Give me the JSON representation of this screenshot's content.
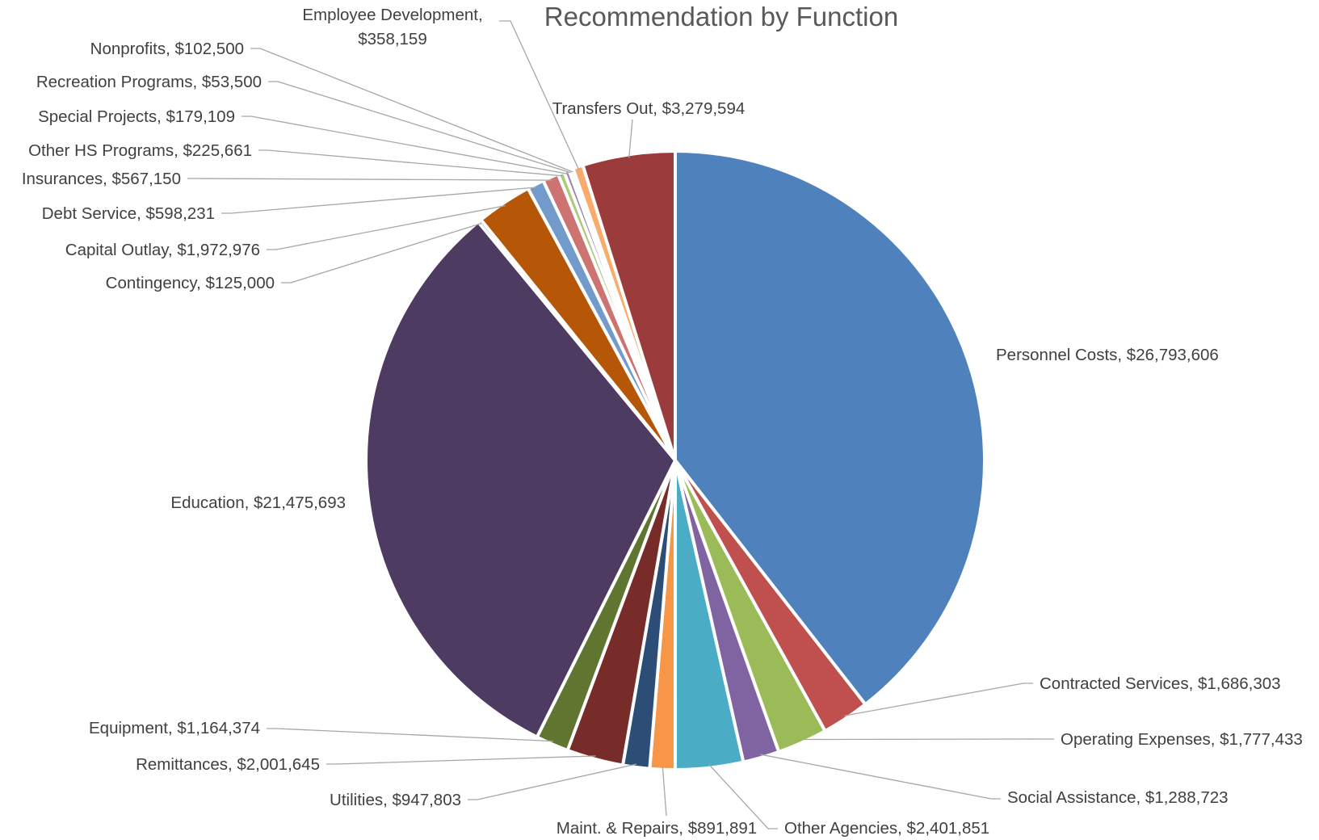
{
  "chart_data": {
    "type": "pie",
    "title": "Recommendation by Function",
    "slices": [
      {
        "label": "Personnel Costs",
        "value": 26793606,
        "value_text": "$26,793,606",
        "color": "#4f81bd"
      },
      {
        "label": "Contracted Services",
        "value": 1686303,
        "value_text": "$1,686,303",
        "color": "#c0504d"
      },
      {
        "label": "Operating Expenses",
        "value": 1777433,
        "value_text": "$1,777,433",
        "color": "#9bbb59"
      },
      {
        "label": "Social Assistance",
        "value": 1288723,
        "value_text": "$1,288,723",
        "color": "#8064a2"
      },
      {
        "label": "Other Agencies",
        "value": 2401851,
        "value_text": "$2,401,851",
        "color": "#4bacc6"
      },
      {
        "label": "Maint. & Repairs",
        "value": 891891,
        "value_text": "$891,891",
        "color": "#f79646"
      },
      {
        "label": "Utilities",
        "value": 947803,
        "value_text": "$947,803",
        "color": "#2c4d75"
      },
      {
        "label": "Remittances",
        "value": 2001645,
        "value_text": "$2,001,645",
        "color": "#772c2a"
      },
      {
        "label": "Equipment",
        "value": 1164374,
        "value_text": "$1,164,374",
        "color": "#5f7530"
      },
      {
        "label": "Education",
        "value": 21475693,
        "value_text": "$21,475,693",
        "color": "#4d3b62"
      },
      {
        "label": "Contingency",
        "value": 125000,
        "value_text": "$125,000",
        "color": "#276a7c"
      },
      {
        "label": "Capital Outlay",
        "value": 1972976,
        "value_text": "$1,972,976",
        "color": "#b65708"
      },
      {
        "label": "Debt Service",
        "value": 598231,
        "value_text": "$598,231",
        "color": "#729aca"
      },
      {
        "label": "Insurances",
        "value": 567150,
        "value_text": "$567,150",
        "color": "#cd7371"
      },
      {
        "label": "Other HS Programs",
        "value": 225661,
        "value_text": "$225,661",
        "color": "#afc97a"
      },
      {
        "label": "Special Projects",
        "value": 179109,
        "value_text": "$179,109",
        "color": "#9983b5"
      },
      {
        "label": "Recreation Programs",
        "value": 53500,
        "value_text": "$53,500",
        "color": "#6fbdd1"
      },
      {
        "label": "Nonprofits",
        "value": 102500,
        "value_text": "$102,500",
        "color": "#f9ab6b"
      },
      {
        "label": "Employee Development",
        "value": 358159,
        "value_text": "$358,159",
        "color": "#f9ab6b"
      },
      {
        "label": "Transfers Out",
        "value": 3279594,
        "value_text": "$3,279,594",
        "color": "#9c3b3b"
      }
    ]
  }
}
